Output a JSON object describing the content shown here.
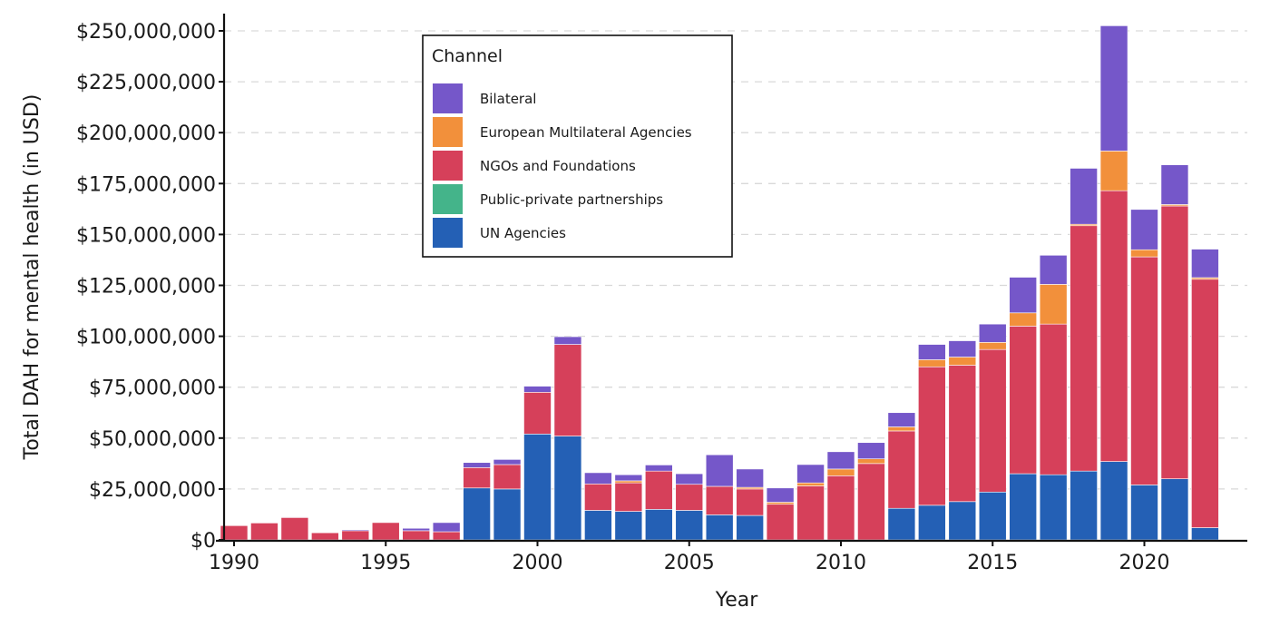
{
  "chart_data": {
    "type": "bar",
    "stacked": true,
    "title": "",
    "xlabel": "Year",
    "ylabel": "Total DAH for mental health (in USD)",
    "ylim": [
      0,
      255000000
    ],
    "yticks": [
      0,
      25000000,
      50000000,
      75000000,
      100000000,
      125000000,
      150000000,
      175000000,
      200000000,
      225000000,
      250000000
    ],
    "ytick_labels": [
      "$0",
      "$25,000,000",
      "$50,000,000",
      "$75,000,000",
      "$100,000,000",
      "$125,000,000",
      "$150,000,000",
      "$175,000,000",
      "$200,000,000",
      "$225,000,000",
      "$250,000,000"
    ],
    "xticks": [
      1990,
      1995,
      2000,
      2005,
      2010,
      2015,
      2020
    ],
    "xtick_labels": [
      "1990",
      "1995",
      "2000",
      "2005",
      "2010",
      "2015",
      "2020"
    ],
    "grid": "horizontal-dashed",
    "legend": {
      "title": "Channel",
      "placement": "top-left-inside"
    },
    "categories": [
      1990,
      1991,
      1992,
      1993,
      1994,
      1995,
      1996,
      1997,
      1998,
      1999,
      2000,
      2001,
      2002,
      2003,
      2004,
      2005,
      2006,
      2007,
      2008,
      2009,
      2010,
      2011,
      2012,
      2013,
      2014,
      2015,
      2016,
      2017,
      2018,
      2019,
      2020,
      2021,
      2022
    ],
    "series": [
      {
        "name": "UN Agencies",
        "color": "#2460b5",
        "values": [
          0,
          0,
          0,
          0,
          0,
          0,
          0,
          0,
          25500000,
          25000000,
          52000000,
          51000000,
          14500000,
          14000000,
          15000000,
          14500000,
          12300000,
          12000000,
          0,
          0,
          0,
          0,
          15500000,
          17000000,
          18800000,
          23500000,
          32500000,
          32000000,
          33800000,
          38500000,
          27000000,
          30000000,
          6000000
        ]
      },
      {
        "name": "Public-private partnerships",
        "color": "#44b48a",
        "values": [
          0,
          0,
          0,
          0,
          0,
          0,
          0,
          0,
          0,
          0,
          0,
          0,
          0,
          0,
          0,
          0,
          0,
          0,
          0,
          0,
          0,
          0,
          0,
          0,
          0,
          0,
          0,
          0,
          0,
          0,
          0,
          0,
          0
        ]
      },
      {
        "name": "NGOs and Foundations",
        "color": "#d6405a",
        "values": [
          7000000,
          8300000,
          11000000,
          3500000,
          4500000,
          8500000,
          4500000,
          4000000,
          10000000,
          12000000,
          20500000,
          45000000,
          13000000,
          14000000,
          18800000,
          12800000,
          14000000,
          13000000,
          17500000,
          26500000,
          31500000,
          37500000,
          38000000,
          68000000,
          67000000,
          70000000,
          72500000,
          74000000,
          120500000,
          133000000,
          112000000,
          134000000,
          122000000
        ]
      },
      {
        "name": "European Multilateral Agencies",
        "color": "#f2903b",
        "values": [
          0,
          0,
          0,
          0,
          0,
          0,
          0,
          0,
          0,
          0,
          0,
          0,
          0,
          1000000,
          0,
          0,
          0,
          800000,
          1000000,
          1500000,
          3300000,
          2300000,
          2000000,
          3500000,
          4000000,
          3500000,
          6500000,
          19500000,
          700000,
          19500000,
          3500000,
          700000,
          800000
        ]
      },
      {
        "name": "Bilateral",
        "color": "#7557c9",
        "values": [
          0,
          0,
          300000,
          0,
          500000,
          0,
          1200000,
          4500000,
          2500000,
          2500000,
          3000000,
          3800000,
          5500000,
          3000000,
          3000000,
          5200000,
          15500000,
          9000000,
          7000000,
          9000000,
          8500000,
          8000000,
          7000000,
          7500000,
          8000000,
          9000000,
          17500000,
          14300000,
          27500000,
          61500000,
          19800000,
          19500000,
          14000000
        ]
      }
    ],
    "legend_order": [
      "Bilateral",
      "European Multilateral Agencies",
      "NGOs and Foundations",
      "Public-private partnerships",
      "UN Agencies"
    ]
  }
}
